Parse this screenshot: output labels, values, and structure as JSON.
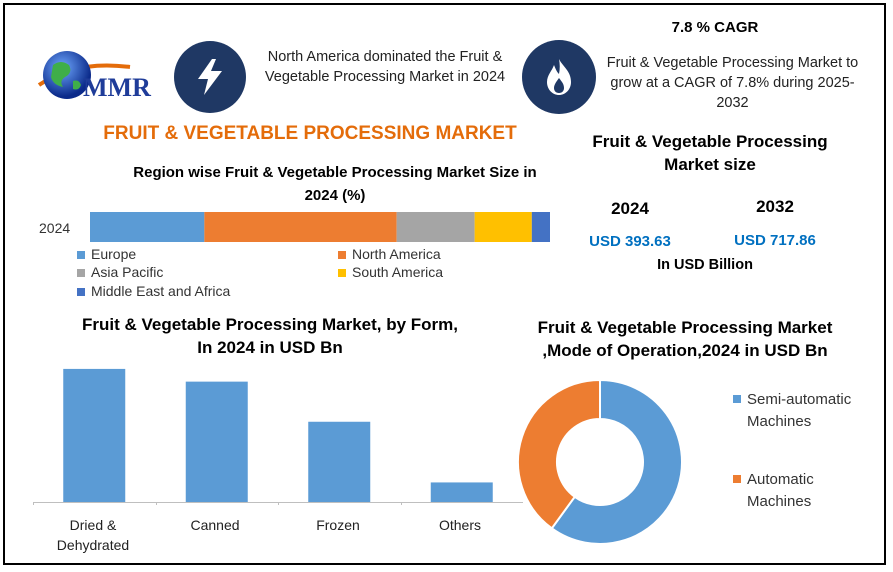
{
  "brand": {
    "logo_text": "MMR"
  },
  "header": {
    "highlight_text": "North America dominated the Fruit & Vegetable Processing Market in 2024",
    "cagr_title": "7.8 % CAGR",
    "cagr_text": "Fruit & Vegetable Processing Market to grow at a CAGR of 7.8% during 2025-2032"
  },
  "main_title": "FRUIT & VEGETABLE PROCESSING MARKET",
  "market_size": {
    "title": "Fruit & Vegetable Processing Market size",
    "year1": "2024",
    "value1": "USD 393.63",
    "year2": "2032",
    "value2": "USD 717.86",
    "unit": "In USD Billion"
  },
  "colors": {
    "accent": "#e46c0a",
    "brand_blue": "#1f3864",
    "value_blue": "#0070c0",
    "europe": "#5b9bd5",
    "north_america": "#ed7d31",
    "asia_pacific": "#a5a5a5",
    "south_america": "#ffc000",
    "mea": "#4472c4"
  },
  "icons": {
    "highlight": "lightning-bolt-icon",
    "cagr": "flame-icon",
    "logo": "globe-icon"
  },
  "chart_data": [
    {
      "type": "bar",
      "orientation": "horizontal-stacked",
      "title": "Region wise Fruit & Vegetable Processing Market  Size in 2024 (%)",
      "categories": [
        "2024"
      ],
      "series": [
        {
          "name": "Europe",
          "values": [
            22
          ]
        },
        {
          "name": "North America",
          "values": [
            37
          ]
        },
        {
          "name": "Asia Pacific",
          "values": [
            15
          ]
        },
        {
          "name": "South America",
          "values": [
            11
          ]
        },
        {
          "name": "Middle East and Africa",
          "values": [
            3.5
          ]
        }
      ]
    },
    {
      "type": "bar",
      "title": "Fruit & Vegetable Processing Market, by Form, In 2024 in USD Bn",
      "categories": [
        "Dried & Dehydrated",
        "Canned",
        "Frozen",
        "Others"
      ],
      "values": [
        136,
        123,
        82,
        20
      ],
      "ylim": [
        0,
        140
      ],
      "xlabel": "",
      "ylabel": ""
    },
    {
      "type": "pie",
      "subtype": "donut",
      "title": "Fruit & Vegetable Processing Market ,Mode of Operation,2024 in USD Bn",
      "labels": [
        "Semi-automatic Machines",
        "Automatic Machines"
      ],
      "values": [
        60,
        40
      ]
    }
  ]
}
